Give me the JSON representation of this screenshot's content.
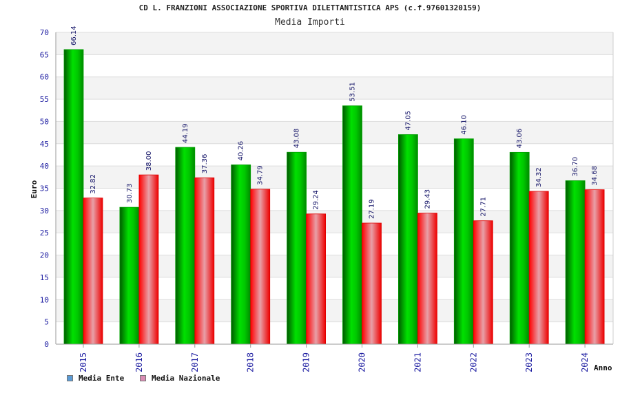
{
  "chart_data": {
    "type": "bar",
    "title": "CD L. FRANZIONI ASSOCIAZIONE SPORTIVA DILETTANTISTICA APS (c.f.97601320159)",
    "subtitle": "Media Importi",
    "xlabel": "Anno",
    "ylabel": "Euro",
    "ylim": [
      0,
      70
    ],
    "yticks": [
      0,
      5,
      10,
      15,
      20,
      25,
      30,
      35,
      40,
      45,
      50,
      55,
      60,
      65,
      70
    ],
    "categories": [
      "2015",
      "2016",
      "2017",
      "2018",
      "2019",
      "2020",
      "2021",
      "2022",
      "2023",
      "2024"
    ],
    "series": [
      {
        "name": "Media Ente",
        "values": [
          66.14,
          30.73,
          44.19,
          40.26,
          43.08,
          53.51,
          47.05,
          46.1,
          43.06,
          36.7
        ],
        "labels": [
          "66.14",
          "30.73",
          "44.19",
          "40.26",
          "43.08",
          "53.51",
          "47.05",
          "46.10",
          "43.06",
          "36.70"
        ],
        "color": "#00b400",
        "legend_color": "#5b9bd5"
      },
      {
        "name": "Media Nazionale",
        "values": [
          32.82,
          38.0,
          37.36,
          34.79,
          29.24,
          27.19,
          29.43,
          27.71,
          34.32,
          34.68
        ],
        "labels": [
          "32.82",
          "38.00",
          "37.36",
          "34.79",
          "29.24",
          "27.19",
          "29.43",
          "27.71",
          "34.32",
          "34.68"
        ],
        "color": "#ee1111",
        "legend_color": "#d98cb3"
      }
    ],
    "grid": true,
    "legend": "bottom-left"
  }
}
